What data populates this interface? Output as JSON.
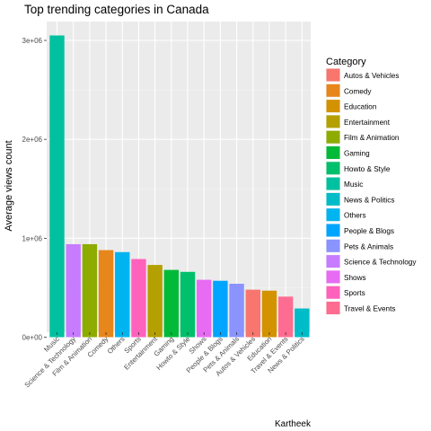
{
  "chart_data": {
    "type": "bar",
    "title": "Top trending categories in Canada",
    "xlabel": "",
    "ylabel": "Average views count",
    "caption": "Kartheek",
    "ylim": [
      0,
      3150000
    ],
    "y_ticks": [
      {
        "value": 0,
        "label": "0e+00"
      },
      {
        "value": 1000000,
        "label": "1e+06"
      },
      {
        "value": 2000000,
        "label": "2e+06"
      },
      {
        "value": 3000000,
        "label": "3e+06"
      }
    ],
    "grid": true,
    "legend_position": "right",
    "legend_title": "Category",
    "legend": [
      {
        "label": "Autos & Vehicles",
        "color": "#F8766D"
      },
      {
        "label": "Comedy",
        "color": "#E7861B"
      },
      {
        "label": "Education",
        "color": "#D39200"
      },
      {
        "label": "Entertainment",
        "color": "#B4A000"
      },
      {
        "label": "Film & Animation",
        "color": "#8EAB00"
      },
      {
        "label": "Gaming",
        "color": "#00BA38"
      },
      {
        "label": "Howto & Style",
        "color": "#00C06B"
      },
      {
        "label": "Music",
        "color": "#00C19F"
      },
      {
        "label": "News & Politics",
        "color": "#00BCC8"
      },
      {
        "label": "Others",
        "color": "#00B4EF"
      },
      {
        "label": "People & Blogs",
        "color": "#00A5FF"
      },
      {
        "label": "Pets & Animals",
        "color": "#8B93FF"
      },
      {
        "label": "Science & Technology",
        "color": "#C77CFF"
      },
      {
        "label": "Shows",
        "color": "#E76BF3"
      },
      {
        "label": "Sports",
        "color": "#FF62BC"
      },
      {
        "label": "Travel & Events",
        "color": "#FF6C91"
      }
    ],
    "categories": [
      "Music",
      "Science & Technology",
      "Film & Animation",
      "Comedy",
      "Others",
      "Sports",
      "Entertainment",
      "Gaming",
      "Howto & Style",
      "Shows",
      "People & Blogs",
      "Pets & Animals",
      "Autos & Vehicles",
      "Education",
      "Travel & Events",
      "News & Politics"
    ],
    "values": [
      3050000,
      940000,
      940000,
      880000,
      860000,
      790000,
      730000,
      680000,
      660000,
      580000,
      570000,
      540000,
      480000,
      470000,
      410000,
      290000
    ],
    "bar_colors": [
      "#00C19F",
      "#C77CFF",
      "#8EAB00",
      "#E7861B",
      "#00B4EF",
      "#FF62BC",
      "#B4A000",
      "#00BA38",
      "#00C06B",
      "#E76BF3",
      "#00A5FF",
      "#8B93FF",
      "#F8766D",
      "#D39200",
      "#FF6C91",
      "#00BCC8"
    ]
  }
}
